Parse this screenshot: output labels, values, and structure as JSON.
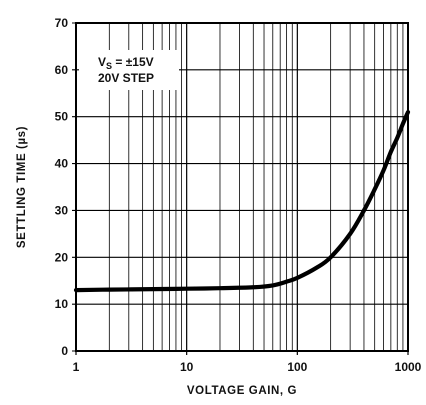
{
  "chart_data": {
    "type": "line",
    "xlabel": "VOLTAGE GAIN, G",
    "ylabel": "SETTLING TIME (µs)",
    "xscale": "log",
    "xlim": [
      1,
      1000
    ],
    "ylim": [
      0,
      70
    ],
    "grid": true,
    "x_tick_labels": [
      "1",
      "10",
      "100",
      "1000"
    ],
    "y_tick_labels": [
      "0",
      "10",
      "20",
      "30",
      "40",
      "50",
      "60",
      "70"
    ],
    "y_ticks": [
      0,
      10,
      20,
      30,
      40,
      50,
      60,
      70
    ],
    "x_ticks": [
      1,
      10,
      100,
      1000
    ],
    "annotations": [
      {
        "main": "V",
        "sub": "S",
        "rest": " = ±15V"
      },
      {
        "main": "20V STEP"
      }
    ],
    "series": [
      {
        "color": "#000000",
        "x": [
          1,
          2,
          5,
          10,
          20,
          40,
          60,
          80,
          100,
          150,
          200,
          300,
          400,
          500,
          600,
          700,
          800,
          900,
          1000
        ],
        "y": [
          13.0,
          13.1,
          13.2,
          13.3,
          13.4,
          13.6,
          14.0,
          14.8,
          15.6,
          17.8,
          20.0,
          25.0,
          30.0,
          34.5,
          38.5,
          42.5,
          45.5,
          48.5,
          51.0
        ]
      }
    ]
  }
}
